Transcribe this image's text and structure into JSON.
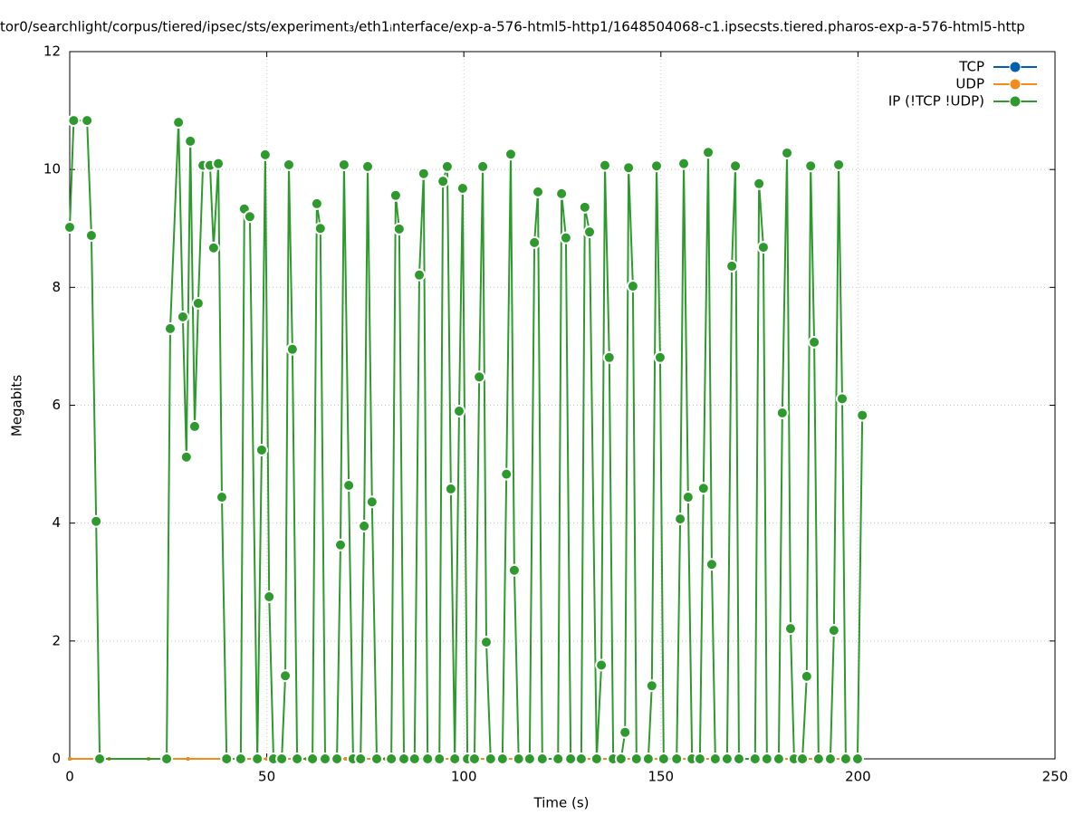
{
  "chart_data": {
    "type": "line",
    "title": "tor0/searchlight/corpus/tiered/ipsec/sts/experiment₃/eth1ᵢnterface/exp-a-576-html5-http1/1648504068-c1.ipsecsts.tiered.pharos-exp-a-576-html5-http",
    "x_label": "Time (s)",
    "y_label": "Megabits",
    "xlim": [
      0,
      250
    ],
    "xticks": [
      0,
      50,
      100,
      150,
      200,
      250
    ],
    "ylim": [
      0,
      12
    ],
    "yticks": [
      0,
      2,
      4,
      6,
      8,
      10,
      12
    ],
    "grid": true,
    "legend": "top-right",
    "series": [
      {
        "name": "TCP",
        "color": "#0060ad",
        "x": [
          0,
          10,
          20,
          30,
          40,
          50,
          60,
          70,
          80,
          90,
          100,
          110,
          120,
          130,
          140,
          150,
          160,
          170,
          180,
          190,
          200
        ],
        "values": [
          0,
          0,
          0,
          0,
          0,
          0,
          0,
          0,
          0,
          0,
          0,
          0,
          0,
          0,
          0,
          0,
          0,
          0,
          0,
          0,
          0
        ]
      },
      {
        "name": "UDP",
        "color": "#f28b1a",
        "x": [
          0,
          10,
          20,
          30,
          40,
          50,
          60,
          70,
          80,
          90,
          100,
          110,
          120,
          130,
          140,
          150,
          160,
          170,
          180,
          190,
          200
        ],
        "values": [
          0,
          0,
          0,
          0,
          0,
          0,
          0,
          0,
          0,
          0,
          0,
          0,
          0,
          0,
          0,
          0,
          0,
          0,
          0,
          0,
          0
        ]
      },
      {
        "name": "IP (!TCP  !UDP)",
        "color": "#2e9a2e",
        "x": [
          0,
          1,
          4.4,
          5.5,
          6.7,
          7.6,
          24.6,
          25.5,
          27.6,
          28.7,
          29.6,
          30.6,
          31.7,
          32.6,
          33.8,
          35.6,
          36.5,
          37.7,
          38.6,
          39.8,
          43.4,
          44.3,
          45.7,
          47.6,
          48.7,
          49.6,
          50.6,
          51.7,
          53.8,
          54.7,
          55.6,
          56.5,
          57.7,
          61.6,
          62.7,
          63.6,
          64.8,
          67.8,
          68.7,
          69.6,
          70.8,
          71.9,
          73.8,
          74.7,
          75.6,
          76.7,
          77.9,
          81.6,
          82.7,
          83.6,
          84.8,
          87.5,
          88.7,
          89.8,
          90.8,
          93.8,
          94.7,
          95.8,
          96.7,
          97.7,
          98.8,
          99.7,
          100.9,
          102.7,
          103.9,
          104.8,
          105.7,
          106.8,
          109.8,
          110.8,
          111.9,
          112.8,
          113.9,
          116.7,
          117.9,
          118.8,
          119.9,
          123.9,
          124.8,
          125.9,
          127.1,
          129.8,
          130.7,
          131.9,
          133.7,
          134.9,
          135.8,
          136.9,
          137.9,
          139.9,
          140.9,
          141.8,
          142.9,
          143.8,
          146.8,
          147.7,
          148.9,
          149.8,
          150.7,
          154.0,
          154.9,
          155.8,
          156.9,
          157.9,
          159.9,
          160.8,
          162.0,
          162.9,
          163.8,
          166.8,
          168.0,
          168.9,
          169.8,
          173.9,
          174.9,
          176.0,
          176.9,
          179.9,
          180.8,
          182.0,
          182.9,
          183.8,
          185.9,
          187.0,
          188.0,
          188.9,
          190.0,
          193.0,
          193.9,
          195.1,
          196.0,
          196.9,
          199.9,
          201.1
        ],
        "values": [
          9.02,
          10.83,
          10.83,
          8.88,
          4.03,
          0,
          0,
          7.3,
          10.8,
          7.5,
          5.12,
          10.48,
          5.64,
          7.73,
          10.07,
          10.07,
          8.67,
          10.1,
          4.44,
          0,
          0,
          9.33,
          9.2,
          0,
          5.24,
          10.25,
          2.75,
          0,
          0,
          1.41,
          10.08,
          6.95,
          0,
          0,
          9.42,
          9.0,
          0,
          0,
          3.63,
          10.08,
          4.64,
          0,
          0,
          3.95,
          10.05,
          4.36,
          0,
          0,
          9.56,
          8.99,
          0,
          0,
          8.21,
          9.93,
          0,
          0,
          9.8,
          10.05,
          4.58,
          0,
          5.9,
          9.68,
          0,
          0,
          6.48,
          10.05,
          1.98,
          0,
          0,
          4.83,
          10.26,
          3.2,
          0,
          0,
          8.76,
          9.62,
          0,
          0,
          9.59,
          8.84,
          0,
          0,
          9.36,
          8.94,
          0,
          1.59,
          10.07,
          6.81,
          0,
          0,
          0.45,
          10.03,
          8.02,
          0,
          0,
          1.24,
          10.06,
          6.81,
          0,
          0,
          4.07,
          10.1,
          4.44,
          0,
          0,
          4.59,
          10.29,
          3.3,
          0,
          0,
          8.36,
          10.06,
          0,
          0,
          9.76,
          8.68,
          0,
          0,
          5.87,
          10.28,
          2.21,
          0,
          0,
          1.4,
          10.06,
          7.07,
          0,
          0,
          2.18,
          10.08,
          6.11,
          0,
          0,
          5.83
        ]
      }
    ]
  }
}
